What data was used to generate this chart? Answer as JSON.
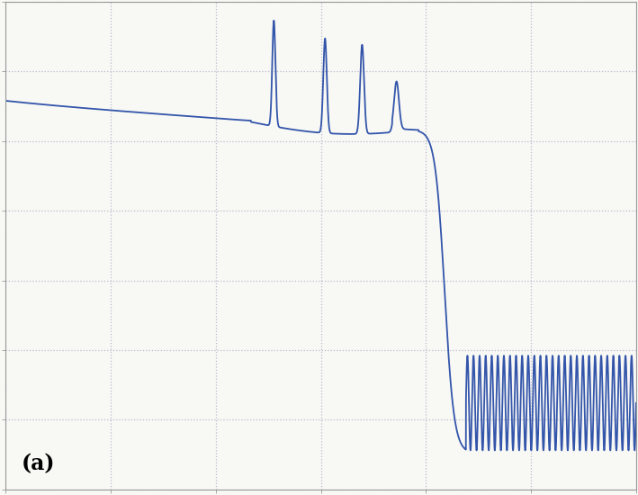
{
  "line_color": "#3355aa",
  "background_color": "#f8f8f5",
  "grid_color": "#bbbbcc",
  "label": "(a)",
  "figsize": [
    7.09,
    5.5
  ],
  "dpi": 100,
  "label_fontsize": 17
}
